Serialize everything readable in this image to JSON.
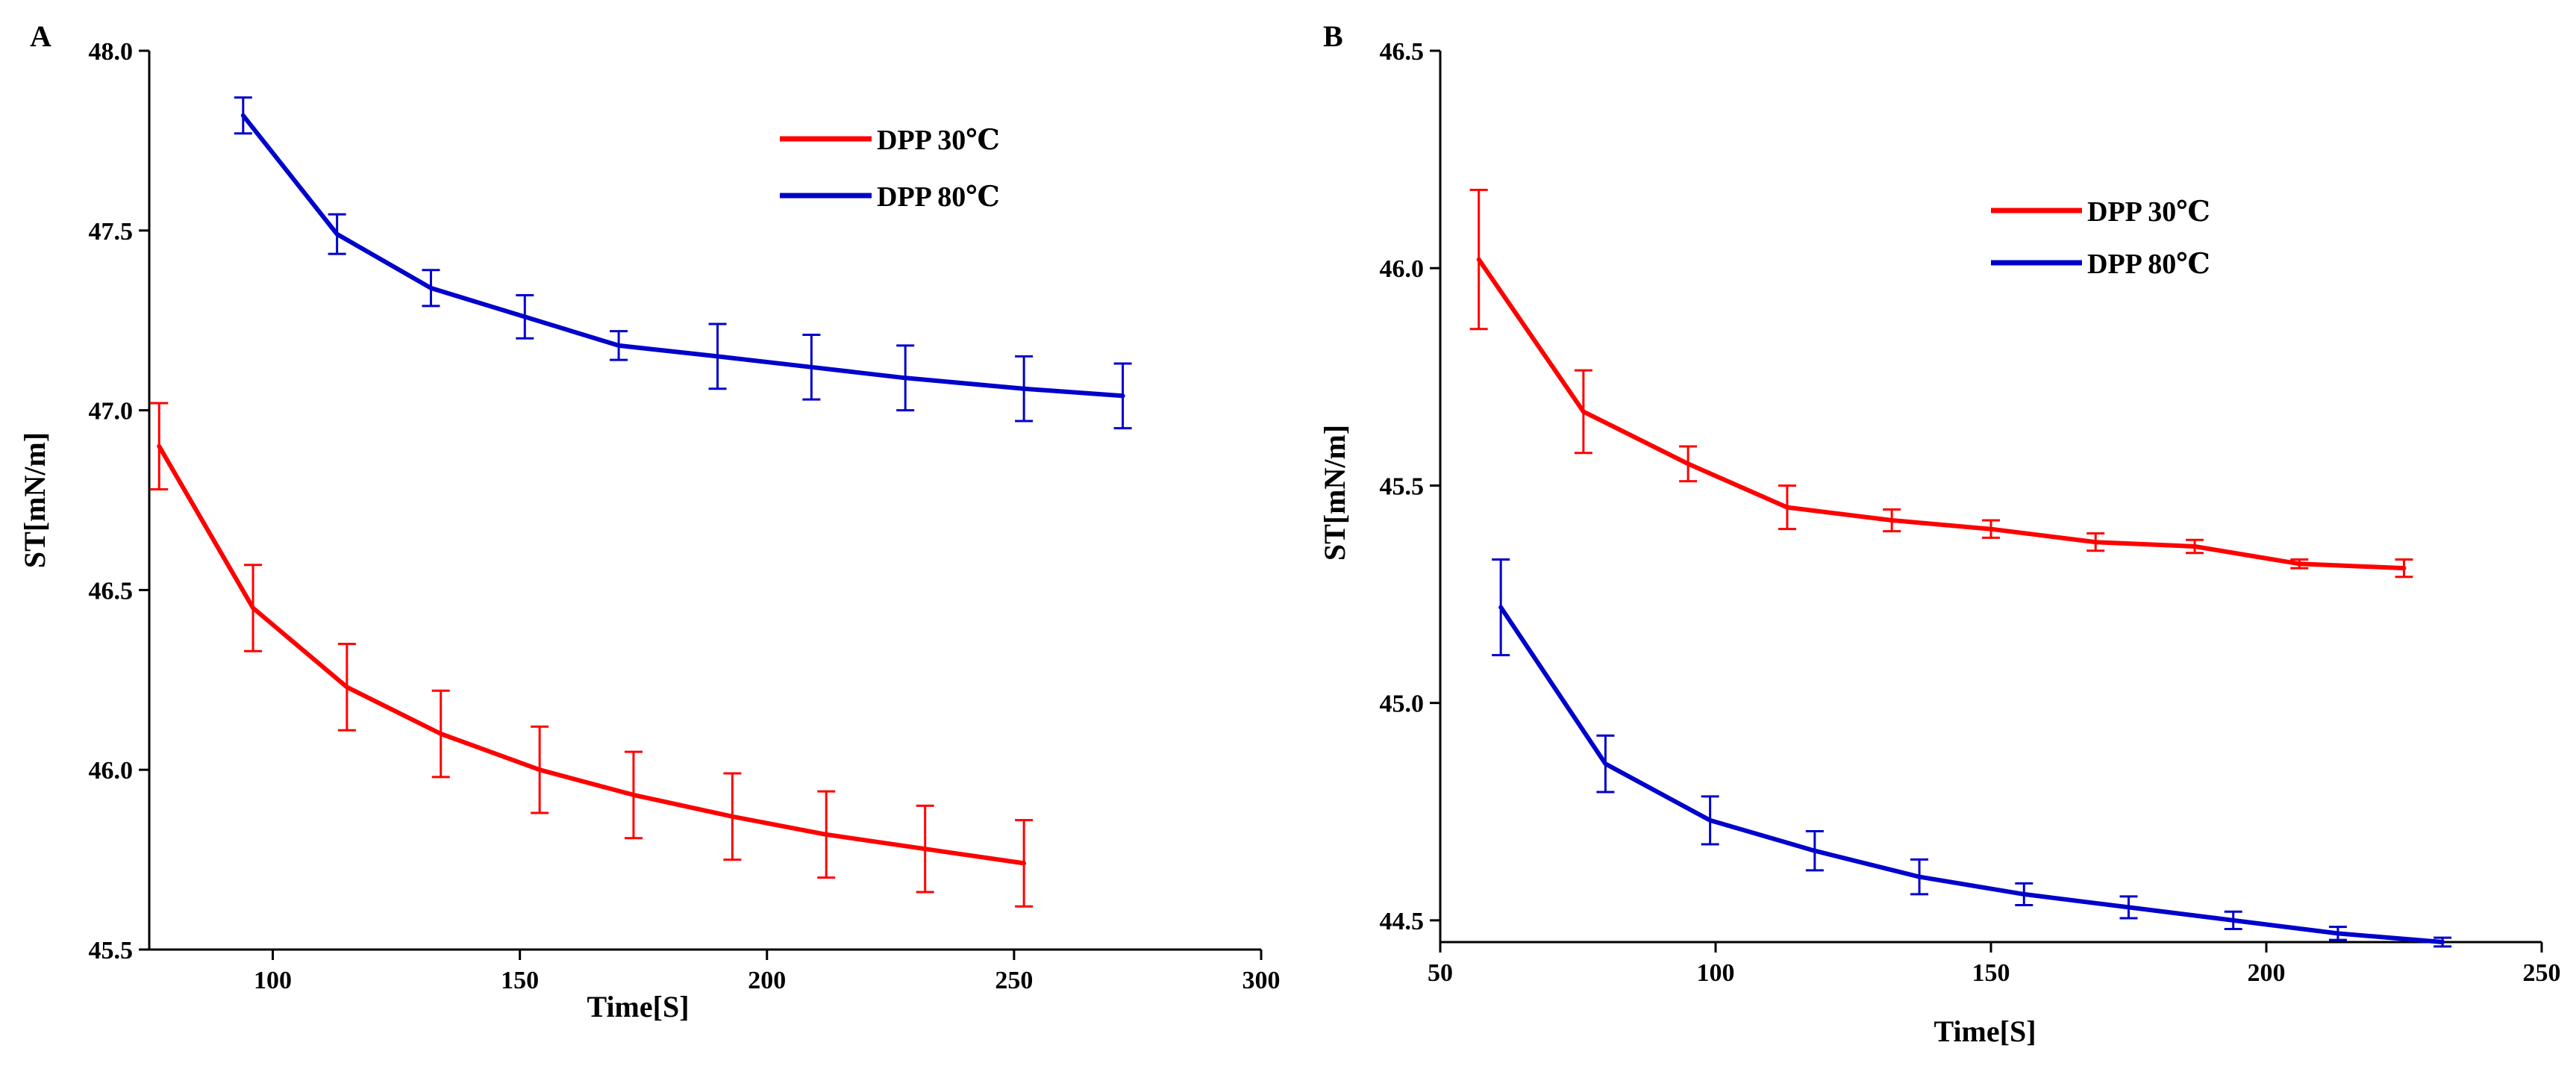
{
  "chart_data": [
    {
      "panel": "A",
      "type": "line",
      "xlabel": "Time[S]",
      "ylabel": "ST[mN/m]",
      "xlim": [
        75,
        300
      ],
      "ylim": [
        45.5,
        48.0
      ],
      "xticks": [
        100,
        150,
        200,
        250,
        300
      ],
      "yticks": [
        45.5,
        46.0,
        46.5,
        47.0,
        47.5,
        48.0
      ],
      "xtick_labels": [
        "100",
        "150",
        "200",
        "250",
        "300"
      ],
      "ytick_labels": [
        "45.5",
        "46.0",
        "46.5",
        "47.0",
        "47.5",
        "48.0"
      ],
      "legend_position": "top-right",
      "series": [
        {
          "name": "DPP 30℃",
          "color": "#ff0000",
          "x": [
            77,
            96,
            115,
            134,
            154,
            173,
            193,
            212,
            232,
            252
          ],
          "y": [
            46.9,
            46.45,
            46.23,
            46.1,
            46.0,
            45.93,
            45.87,
            45.82,
            45.78,
            45.74
          ],
          "err": [
            0.12,
            0.12,
            0.12,
            0.12,
            0.12,
            0.12,
            0.12,
            0.12,
            0.12,
            0.12
          ]
        },
        {
          "name": "DPP 80℃",
          "color": "#0000cc",
          "x": [
            94,
            113,
            132,
            151,
            170,
            190,
            209,
            228,
            252,
            272
          ],
          "y": [
            47.82,
            47.49,
            47.34,
            47.26,
            47.18,
            47.15,
            47.12,
            47.09,
            47.06,
            47.04
          ],
          "err": [
            0.05,
            0.055,
            0.05,
            0.06,
            0.04,
            0.09,
            0.09,
            0.09,
            0.09,
            0.09
          ]
        }
      ]
    },
    {
      "panel": "B",
      "type": "line",
      "xlabel": "Time[S]",
      "ylabel": "ST[mN/m]",
      "xlim": [
        50,
        250
      ],
      "ylim": [
        44.45,
        46.5
      ],
      "xticks": [
        50,
        100,
        150,
        200,
        250
      ],
      "yticks": [
        44.5,
        45.0,
        45.5,
        46.0,
        46.5
      ],
      "xtick_labels": [
        "50",
        "100",
        "150",
        "200",
        "250"
      ],
      "ytick_labels": [
        "44.5",
        "45.0",
        "45.5",
        "46.0",
        "46.5"
      ],
      "legend_position": "top-right",
      "series": [
        {
          "name": "DPP 30℃",
          "color": "#ff0000",
          "x": [
            57,
            76,
            95,
            113,
            132,
            150,
            169,
            187,
            206,
            225
          ],
          "y": [
            46.02,
            45.67,
            45.55,
            45.45,
            45.42,
            45.4,
            45.37,
            45.36,
            45.32,
            45.31
          ],
          "err": [
            0.16,
            0.095,
            0.04,
            0.05,
            0.025,
            0.02,
            0.02,
            0.015,
            0.01,
            0.02
          ]
        },
        {
          "name": "DPP 80℃",
          "color": "#0000cc",
          "x": [
            61,
            80,
            99,
            118,
            137,
            156,
            175,
            194,
            213,
            232
          ],
          "y": [
            45.22,
            44.86,
            44.73,
            44.66,
            44.6,
            44.56,
            44.53,
            44.5,
            44.47,
            44.45
          ],
          "err": [
            0.11,
            0.065,
            0.055,
            0.045,
            0.04,
            0.025,
            0.025,
            0.02,
            0.015,
            0.01
          ]
        }
      ]
    }
  ]
}
